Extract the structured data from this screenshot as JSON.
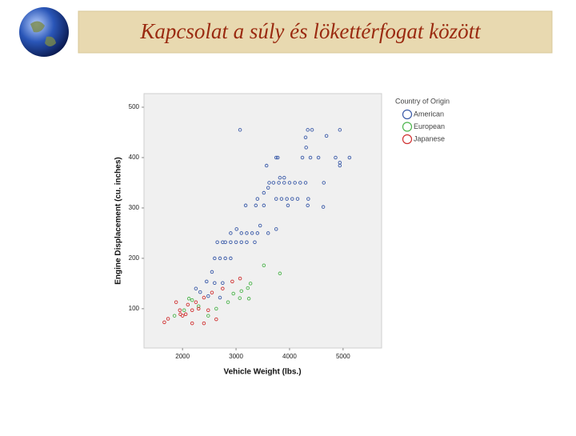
{
  "header": {
    "title": "Kapcsolat a súly és lökettérfogat között"
  },
  "chart_data": {
    "type": "scatter",
    "x_label": "Vehicle Weight (lbs.)",
    "y_label": "Engine Displacement (cu. inches)",
    "legend_title": "Country of Origin",
    "xlim": [
      1280,
      5720
    ],
    "ylim": [
      22,
      527
    ],
    "xticks": [
      2000,
      3000,
      4000,
      5000
    ],
    "yticks": [
      100,
      200,
      300,
      400,
      500
    ],
    "series": [
      {
        "name": "American",
        "color": "#3a5aa8",
        "x": [
          3075,
          4340,
          4420,
          4300,
          4940,
          4310,
          4690,
          3750,
          3780,
          4240,
          4390,
          4540,
          4860,
          4940,
          5120,
          3570,
          4940,
          3820,
          3900,
          3620,
          3700,
          3800,
          3900,
          4000,
          4100,
          4200,
          4300,
          4640,
          3600,
          3400,
          3750,
          3850,
          3950,
          4050,
          4150,
          4350,
          3180,
          3370,
          3520,
          3970,
          4340,
          4630,
          3750,
          2900,
          3010,
          3100,
          3200,
          3300,
          3400,
          2650,
          2750,
          2800,
          2900,
          3000,
          3100,
          3200,
          3350,
          2600,
          2700,
          2800,
          2900,
          2550,
          2450,
          2600,
          2750,
          2250,
          2330,
          2480,
          2700,
          3450,
          3600,
          3520
        ],
        "values": [
          455,
          455,
          455,
          440,
          455,
          420,
          443,
          400,
          400,
          400,
          400,
          400,
          400,
          384,
          400,
          384,
          390,
          360,
          360,
          350,
          350,
          350,
          350,
          350,
          350,
          350,
          350,
          350,
          340,
          318,
          318,
          318,
          318,
          318,
          318,
          318,
          305,
          305,
          305,
          305,
          305,
          302,
          258,
          250,
          258,
          250,
          250,
          250,
          250,
          232,
          232,
          232,
          232,
          232,
          232,
          232,
          232,
          200,
          200,
          200,
          200,
          173,
          154,
          151,
          151,
          140,
          133,
          125,
          122,
          265,
          250,
          330
        ]
      },
      {
        "name": "European",
        "color": "#4cb44c",
        "x": [
          3520,
          3820,
          3270,
          3220,
          3070,
          3240,
          2180,
          2850,
          2630,
          2030,
          1850,
          2480,
          2300,
          2120,
          2950,
          3100
        ],
        "values": [
          186,
          170,
          150,
          141,
          121,
          120,
          117,
          113,
          100,
          97,
          86,
          86,
          105,
          120,
          130,
          135
        ]
      },
      {
        "name": "Japanese",
        "color": "#d03030",
        "x": [
          1660,
          1730,
          1960,
          2000,
          2060,
          2180,
          2250,
          2400,
          2550,
          2750,
          2930,
          3075,
          2400,
          2180,
          2630,
          1880,
          2480,
          2100,
          2300,
          1950
        ],
        "values": [
          73,
          80,
          89,
          86,
          89,
          97,
          113,
          122,
          132,
          140,
          154,
          160,
          71,
          71,
          79,
          113,
          97,
          108,
          100,
          97
        ]
      }
    ]
  }
}
